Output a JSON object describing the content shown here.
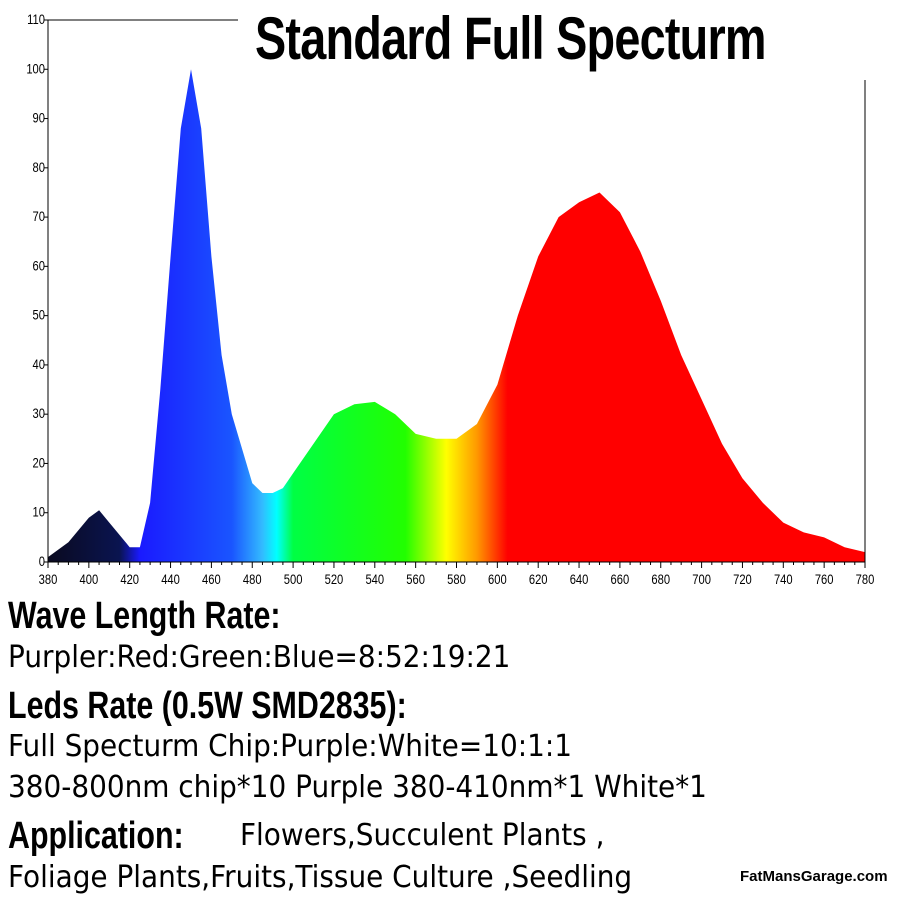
{
  "chart_data": {
    "type": "area",
    "title": "Standard Full Specturm",
    "xlabel": "",
    "ylabel": "",
    "xlim": [
      380,
      780
    ],
    "ylim": [
      0,
      110
    ],
    "xticks": [
      380,
      400,
      420,
      440,
      460,
      480,
      500,
      520,
      540,
      560,
      580,
      600,
      620,
      640,
      660,
      680,
      700,
      720,
      740,
      760,
      780
    ],
    "yticks": [
      0,
      10,
      20,
      30,
      40,
      50,
      60,
      70,
      80,
      90,
      100,
      110
    ],
    "grid": false,
    "x": [
      380,
      390,
      400,
      405,
      410,
      420,
      425,
      430,
      435,
      440,
      445,
      450,
      455,
      460,
      465,
      470,
      480,
      485,
      490,
      495,
      500,
      510,
      520,
      530,
      540,
      550,
      560,
      570,
      580,
      590,
      600,
      610,
      620,
      630,
      640,
      650,
      660,
      670,
      680,
      690,
      700,
      710,
      720,
      730,
      740,
      750,
      760,
      770,
      780
    ],
    "y": [
      1,
      4,
      9,
      10.5,
      8,
      3,
      3,
      12,
      35,
      62,
      88,
      100,
      88,
      62,
      42,
      30,
      16,
      14,
      14,
      15,
      18,
      24,
      30,
      32,
      32.5,
      30,
      26,
      25,
      25,
      28,
      36,
      50,
      62,
      70,
      73,
      75,
      71,
      63,
      53,
      42,
      33,
      24,
      17,
      12,
      8,
      6,
      5,
      3,
      2
    ],
    "color_stops": [
      {
        "nm": 380,
        "color": "#0a0a20"
      },
      {
        "nm": 415,
        "color": "#0a1450"
      },
      {
        "nm": 425,
        "color": "#1a1aff"
      },
      {
        "nm": 470,
        "color": "#1a55ff"
      },
      {
        "nm": 485,
        "color": "#33bbff"
      },
      {
        "nm": 492,
        "color": "#00ffff"
      },
      {
        "nm": 500,
        "color": "#00ff44"
      },
      {
        "nm": 555,
        "color": "#22ff00"
      },
      {
        "nm": 575,
        "color": "#ffff00"
      },
      {
        "nm": 590,
        "color": "#ff9900"
      },
      {
        "nm": 605,
        "color": "#ff0000"
      },
      {
        "nm": 780,
        "color": "#ff0000"
      }
    ]
  },
  "text": {
    "wave_heading": "Wave Length Rate:",
    "wave_ratio": "Purpler:Red:Green:Blue=8:52:19:21",
    "leds_heading": "Leds Rate (0.5W SMD2835):",
    "leds_ratio": "Full Specturm Chip:Purple:White=10:1:1",
    "leds_detail": "380-800nm chip*10   Purple 380-410nm*1    White*1",
    "app_heading": "Application:",
    "app_line1": "Flowers,Succulent Plants ,",
    "app_line2": "Foliage Plants,Fruits,Tissue Culture ,Seedling",
    "watermark": "FatMansGarage.com"
  }
}
